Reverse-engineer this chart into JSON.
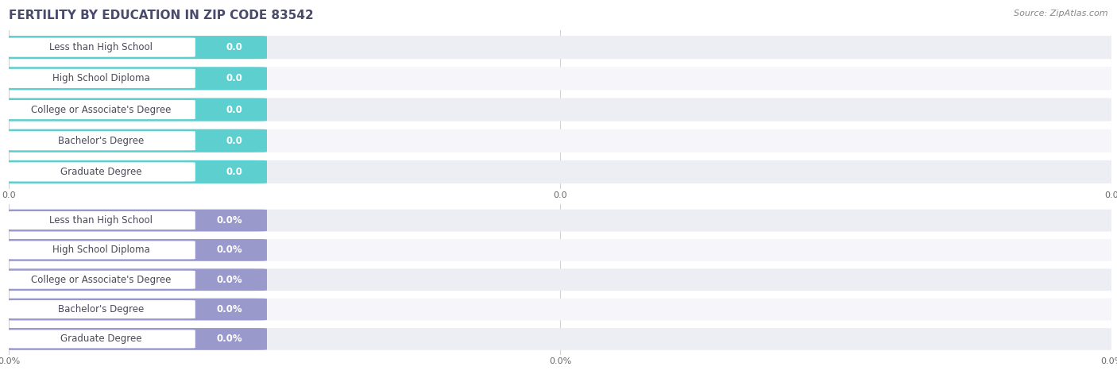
{
  "title": "FERTILITY BY EDUCATION IN ZIP CODE 83542",
  "source_text": "Source: ZipAtlas.com",
  "categories": [
    "Less than High School",
    "High School Diploma",
    "College or Associate's Degree",
    "Bachelor's Degree",
    "Graduate Degree"
  ],
  "values_top": [
    0.0,
    0.0,
    0.0,
    0.0,
    0.0
  ],
  "values_bottom": [
    0.0,
    0.0,
    0.0,
    0.0,
    0.0
  ],
  "top_bar_color": "#5ECFCF",
  "bottom_bar_color": "#9999CC",
  "row_bg_even": "#ededf4",
  "row_bg_odd": "#f5f5fa",
  "background_color": "#ffffff",
  "grid_color": "#d0d0d8",
  "title_color": "#4a4a6a",
  "title_fontsize": 11,
  "source_color": "#888888",
  "source_fontsize": 8,
  "label_fontsize": 8.5,
  "value_fontsize": 8.5,
  "tick_fontsize": 8,
  "tick_color": "#666666"
}
